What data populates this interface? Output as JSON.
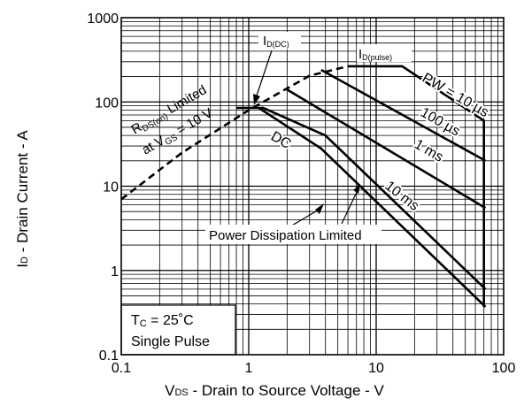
{
  "chart_data": {
    "type": "line",
    "title": "",
    "ylabel": {
      "main": "I",
      "sub": "D",
      "rest": " - Drain Current - A"
    },
    "xlabel": {
      "main": "V",
      "sub": "DS",
      "rest": " - Drain to Source Voltage - V"
    },
    "xscale": "log",
    "yscale": "log",
    "xlim": [
      0.1,
      100
    ],
    "ylim": [
      0.1,
      1000
    ],
    "grid": true,
    "x_ticks": [
      "0.1",
      "1",
      "10",
      "100"
    ],
    "y_ticks": [
      "0.1",
      "1",
      "10",
      "100",
      "1000"
    ],
    "series": [
      {
        "name": "DC",
        "points": [
          [
            0.8,
            85
          ],
          [
            1.2,
            85
          ],
          [
            3.7,
            28
          ],
          [
            72,
            0.37
          ]
        ]
      },
      {
        "name": "10 ms",
        "points": [
          [
            1.2,
            85
          ],
          [
            1.3,
            85
          ],
          [
            4.0,
            40
          ],
          [
            72,
            0.6
          ]
        ]
      },
      {
        "name": "1 ms",
        "points": [
          [
            2.0,
            140
          ],
          [
            72,
            5.5
          ]
        ]
      },
      {
        "name": "100 µs",
        "points": [
          [
            3.7,
            240
          ],
          [
            72,
            20
          ]
        ]
      },
      {
        "name": "PW = 10 µs",
        "points": [
          [
            6.0,
            265
          ],
          [
            16,
            265
          ],
          [
            70,
            60
          ],
          [
            70,
            0.37
          ]
        ]
      }
    ],
    "limit_line": {
      "name": "RDS(on) Limited at VGS = 10 V",
      "style": "dashed",
      "points": [
        [
          0.1,
          7.0
        ],
        [
          0.3,
          25
        ],
        [
          1,
          80
        ],
        [
          3,
          205
        ],
        [
          6,
          265
        ]
      ]
    },
    "annotations": {
      "rds_limited": {
        "main": "R",
        "sub": "DS(on)",
        "rest": " Limited"
      },
      "at_vgs": {
        "main": "at V",
        "sub": "GS",
        "rest": " = 10 V"
      },
      "id_dc": {
        "main": "I",
        "sub": "D(DC)"
      },
      "id_pulse": {
        "main": "I",
        "sub": "D(pulse)"
      },
      "pw_10us": "PW = 10 µs",
      "pw_100us": "100 µs",
      "pw_1ms": "1 ms",
      "pw_10ms": "10 ms",
      "dc": "DC",
      "power_dissipation": "Power Dissipation Limited",
      "tc": {
        "main": "T",
        "sub": "C",
        "rest": " = 25˚C"
      },
      "single_pulse": "Single Pulse"
    }
  }
}
